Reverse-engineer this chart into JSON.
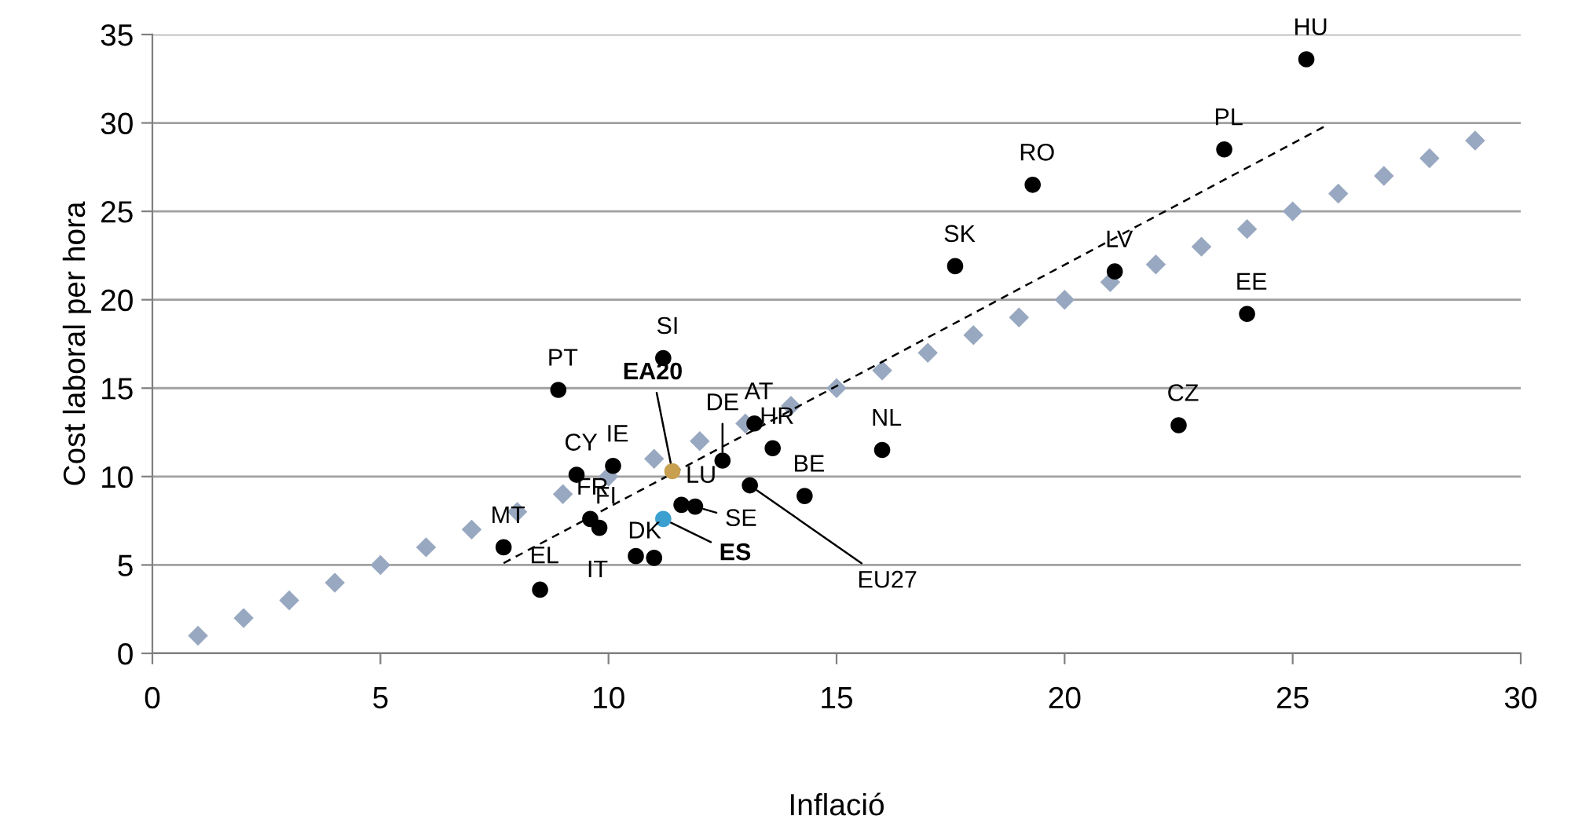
{
  "chart_data": {
    "type": "scatter",
    "xlabel": "Inflació",
    "ylabel": "Cost laboral per hora",
    "xlim": [
      0,
      30
    ],
    "xticks": [
      0,
      5,
      10,
      15,
      20,
      25,
      30
    ],
    "ylim": [
      0,
      35
    ],
    "yticks": [
      0,
      5,
      10,
      15,
      20,
      25,
      30,
      35
    ],
    "grid": "y",
    "legend": false,
    "series": [
      {
        "marker": "diamond",
        "color": "#98a8c0",
        "x": [
          1,
          2,
          3,
          4,
          5,
          6,
          7,
          8,
          9,
          10,
          11,
          12,
          13,
          14,
          15,
          16,
          17,
          18,
          19,
          20,
          21,
          22,
          23,
          24,
          25,
          26,
          27,
          28,
          29
        ],
        "values": [
          1,
          2,
          3,
          4,
          5,
          6,
          7,
          8,
          9,
          10,
          11,
          12,
          13,
          14,
          15,
          16,
          17,
          18,
          19,
          20,
          21,
          22,
          23,
          24,
          25,
          26,
          27,
          28,
          29
        ]
      },
      {
        "type": "line",
        "line_style": "dashed",
        "marker": "none",
        "color": "#000000",
        "x": [
          7.7,
          25.7
        ],
        "values": [
          5.1,
          29.8
        ]
      },
      {
        "marker": "circle",
        "x": [
          25.3,
          23.5,
          19.3,
          17.6,
          21.1,
          24,
          22.5,
          16,
          11.2,
          8.9,
          13.2,
          13.6,
          12.5,
          10.1,
          9.3,
          11.4,
          13.1,
          14.3,
          11.6,
          11.9,
          9.6,
          9.8,
          11.2,
          7.7,
          10.6,
          11,
          8.5
        ],
        "values": [
          33.6,
          28.5,
          26.5,
          21.9,
          21.6,
          19.2,
          12.9,
          11.5,
          16.7,
          14.9,
          13,
          11.6,
          10.9,
          10.6,
          10.1,
          10.3,
          9.5,
          8.9,
          8.4,
          8.3,
          7.6,
          7.1,
          7.6,
          6,
          5.5,
          5.4,
          3.6
        ],
        "colors": [
          "#000000",
          "#000000",
          "#000000",
          "#000000",
          "#000000",
          "#000000",
          "#000000",
          "#000000",
          "#000000",
          "#000000",
          "#000000",
          "#000000",
          "#000000",
          "#000000",
          "#000000",
          "#c8a050",
          "#000000",
          "#000000",
          "#000000",
          "#000000",
          "#000000",
          "#000000",
          "#3ba0d0",
          "#000000",
          "#000000",
          "#000000",
          "#000000"
        ]
      }
    ],
    "annotations": [
      {
        "text": "HU",
        "x": 25.3,
        "y": 33.6
      },
      {
        "text": "PL",
        "x": 23.5,
        "y": 28.5
      },
      {
        "text": "RO",
        "x": 19.3,
        "y": 26.5
      },
      {
        "text": "SK",
        "x": 17.6,
        "y": 21.9
      },
      {
        "text": "LV",
        "x": 21.1,
        "y": 21.6
      },
      {
        "text": "EE",
        "x": 24,
        "y": 19.2
      },
      {
        "text": "CZ",
        "x": 22.5,
        "y": 12.9
      },
      {
        "text": "NL",
        "x": 16,
        "y": 11.5
      },
      {
        "text": "SI",
        "x": 11.2,
        "y": 16.7
      },
      {
        "text": "PT",
        "x": 8.9,
        "y": 14.9
      },
      {
        "text": "AT",
        "x": 13.2,
        "y": 13
      },
      {
        "text": "HR",
        "x": 13.6,
        "y": 11.6
      },
      {
        "text": "DE",
        "x": 12.5,
        "y": 10.9
      },
      {
        "text": "IE",
        "x": 10.1,
        "y": 10.6
      },
      {
        "text": "CY",
        "x": 9.3,
        "y": 10.1
      },
      {
        "text": "EA20",
        "x": 11.4,
        "y": 10.3
      },
      {
        "text": "EU27",
        "x": 13.1,
        "y": 9.5
      },
      {
        "text": "BE",
        "x": 14.3,
        "y": 8.9
      },
      {
        "text": "LU",
        "x": 11.6,
        "y": 8.4
      },
      {
        "text": "SE",
        "x": 11.9,
        "y": 8.3
      },
      {
        "text": "FR",
        "x": 9.6,
        "y": 7.6
      },
      {
        "text": "FI",
        "x": 9.8,
        "y": 7.1
      },
      {
        "text": "ES",
        "x": 11.2,
        "y": 7.6
      },
      {
        "text": "MT",
        "x": 7.7,
        "y": 6
      },
      {
        "text": "DK",
        "x": 10.6,
        "y": 5.5
      },
      {
        "text": "IT",
        "x": 11,
        "y": 5.4
      },
      {
        "text": "EL",
        "x": 8.5,
        "y": 3.6
      }
    ]
  }
}
